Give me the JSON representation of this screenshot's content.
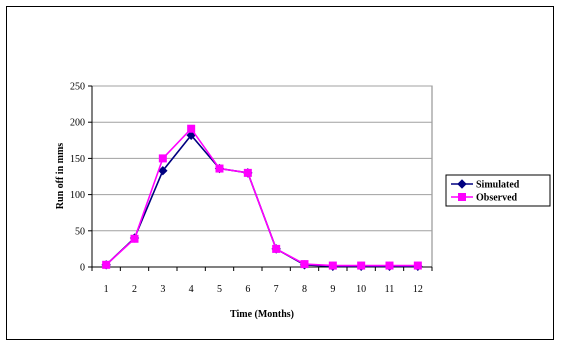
{
  "chart_data": {
    "type": "line",
    "title": "",
    "xlabel": "Time (Months)",
    "ylabel": "Run off in mms",
    "x": [
      "1",
      "2",
      "3",
      "4",
      "5",
      "6",
      "7",
      "8",
      "9",
      "10",
      "11",
      "12"
    ],
    "ylim": [
      0,
      250
    ],
    "yticks": [
      "0",
      "50",
      "100",
      "150",
      "200",
      "250"
    ],
    "grid": true,
    "legend": "right",
    "series": [
      {
        "name": "Simulated",
        "color": "#000080",
        "marker": "diamond",
        "values": [
          3,
          40,
          133,
          182,
          136,
          130,
          25,
          3,
          1,
          1,
          1,
          1
        ]
      },
      {
        "name": "Observed",
        "color": "#FF00FF",
        "marker": "square",
        "values": [
          3,
          39,
          150,
          191,
          136,
          130,
          25,
          4,
          2,
          2,
          2,
          2
        ]
      }
    ]
  }
}
